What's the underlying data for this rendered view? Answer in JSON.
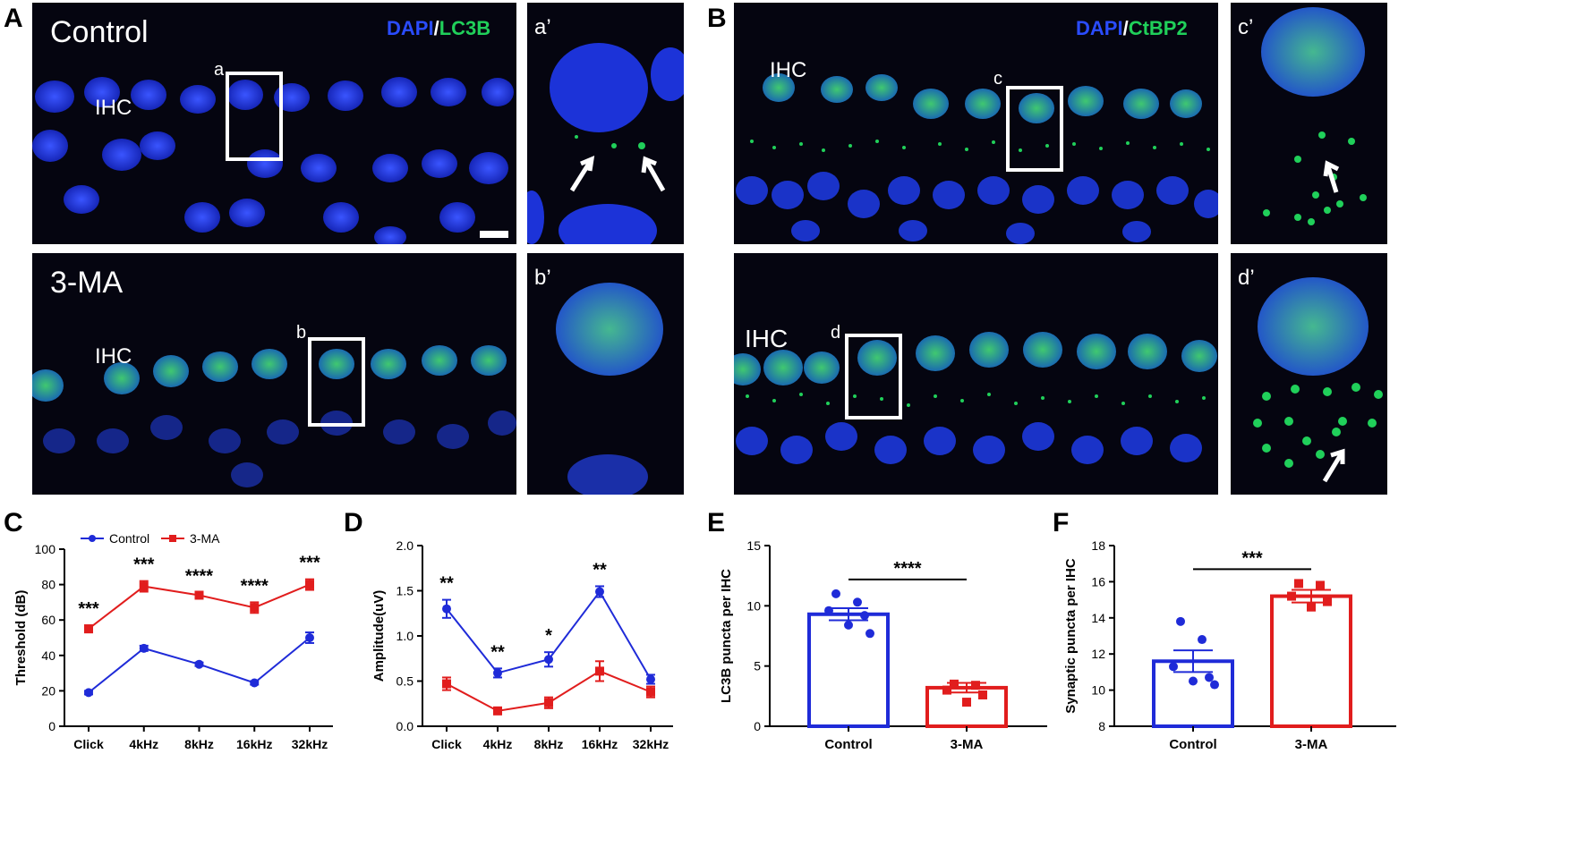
{
  "colors": {
    "control": "#1f2bd8",
    "treated": "#e11d1d",
    "dapi": "#2a4cff",
    "marker": "#20d05a"
  },
  "panel_letters": [
    "A",
    "B",
    "C",
    "D",
    "E",
    "F"
  ],
  "panelA": {
    "top_label": "Control",
    "bottom_label": "3-MA",
    "ihc_top": "IHC",
    "ihc_bottom": "IHC",
    "channel_1": "DAPI",
    "channel_sep": "/",
    "channel_2": "LC3B",
    "box_top": "a",
    "box_bottom": "b",
    "inset_top": "a’",
    "inset_bottom": "b’"
  },
  "panelB": {
    "ihc_top": "IHC",
    "ihc_bottom": "IHC",
    "channel_1": "DAPI",
    "channel_sep": "/",
    "channel_2": "CtBP2",
    "box_top": "c",
    "box_bottom": "d",
    "inset_top": "c’",
    "inset_bottom": "d’"
  },
  "chart_data": [
    {
      "panel": "C",
      "type": "line",
      "categories": [
        "Click",
        "4kHz",
        "8kHz",
        "16kHz",
        "32kHz"
      ],
      "series": [
        {
          "name": "Control",
          "values": [
            19,
            44,
            35,
            24.5,
            50
          ],
          "errors": [
            1,
            1.5,
            1,
            1,
            3
          ]
        },
        {
          "name": "3-MA",
          "values": [
            55,
            79,
            74,
            67,
            80
          ],
          "errors": [
            2,
            3,
            1.5,
            3,
            3
          ]
        }
      ],
      "significance": [
        "***",
        "***",
        "****",
        "****",
        "***"
      ],
      "ylabel": "Threshold (dB)",
      "ylim": [
        0,
        100
      ],
      "yticks": [
        "0",
        "20",
        "40",
        "60",
        "80",
        "100"
      ],
      "legend": "top-left"
    },
    {
      "panel": "D",
      "type": "line",
      "categories": [
        "Click",
        "4kHz",
        "8kHz",
        "16kHz",
        "32kHz"
      ],
      "series": [
        {
          "name": "Control",
          "values": [
            1.3,
            0.59,
            0.74,
            1.49,
            0.52
          ],
          "errors": [
            0.1,
            0.05,
            0.08,
            0.06,
            0.05
          ]
        },
        {
          "name": "3-MA",
          "values": [
            0.47,
            0.17,
            0.26,
            0.61,
            0.38
          ],
          "errors": [
            0.07,
            0.02,
            0.06,
            0.11,
            0.06
          ]
        }
      ],
      "significance": [
        "**",
        "**",
        "*",
        "**",
        ""
      ],
      "ylabel": "Amplitude(uV)",
      "ylim": [
        0,
        2
      ],
      "yticks": [
        "0.0",
        "0.5",
        "1.0",
        "1.5",
        "2.0"
      ]
    },
    {
      "panel": "E",
      "type": "bar",
      "categories": [
        "Control",
        "3-MA"
      ],
      "values": [
        9.3,
        3.2
      ],
      "errors": [
        0.5,
        0.4
      ],
      "points": [
        [
          11.0,
          10.3,
          9.6,
          9.2,
          8.4,
          7.7
        ],
        [
          3.5,
          3.4,
          3.0,
          2.6,
          2.0
        ]
      ],
      "significance": "****",
      "ylabel": "LC3B puncta per IHC",
      "ylim": [
        0,
        15
      ],
      "yticks": [
        "0",
        "5",
        "10",
        "15"
      ]
    },
    {
      "panel": "F",
      "type": "bar",
      "categories": [
        "Control",
        "3-MA"
      ],
      "values": [
        11.6,
        15.2
      ],
      "errors": [
        0.6,
        0.35
      ],
      "points": [
        [
          13.8,
          12.8,
          11.3,
          10.7,
          10.5,
          10.3
        ],
        [
          15.9,
          15.8,
          15.2,
          14.9,
          14.6
        ]
      ],
      "significance": "***",
      "ylabel": "Synaptic puncta per IHC",
      "ylim": [
        8,
        18
      ],
      "yticks": [
        "8",
        "10",
        "12",
        "14",
        "16",
        "18"
      ]
    }
  ]
}
